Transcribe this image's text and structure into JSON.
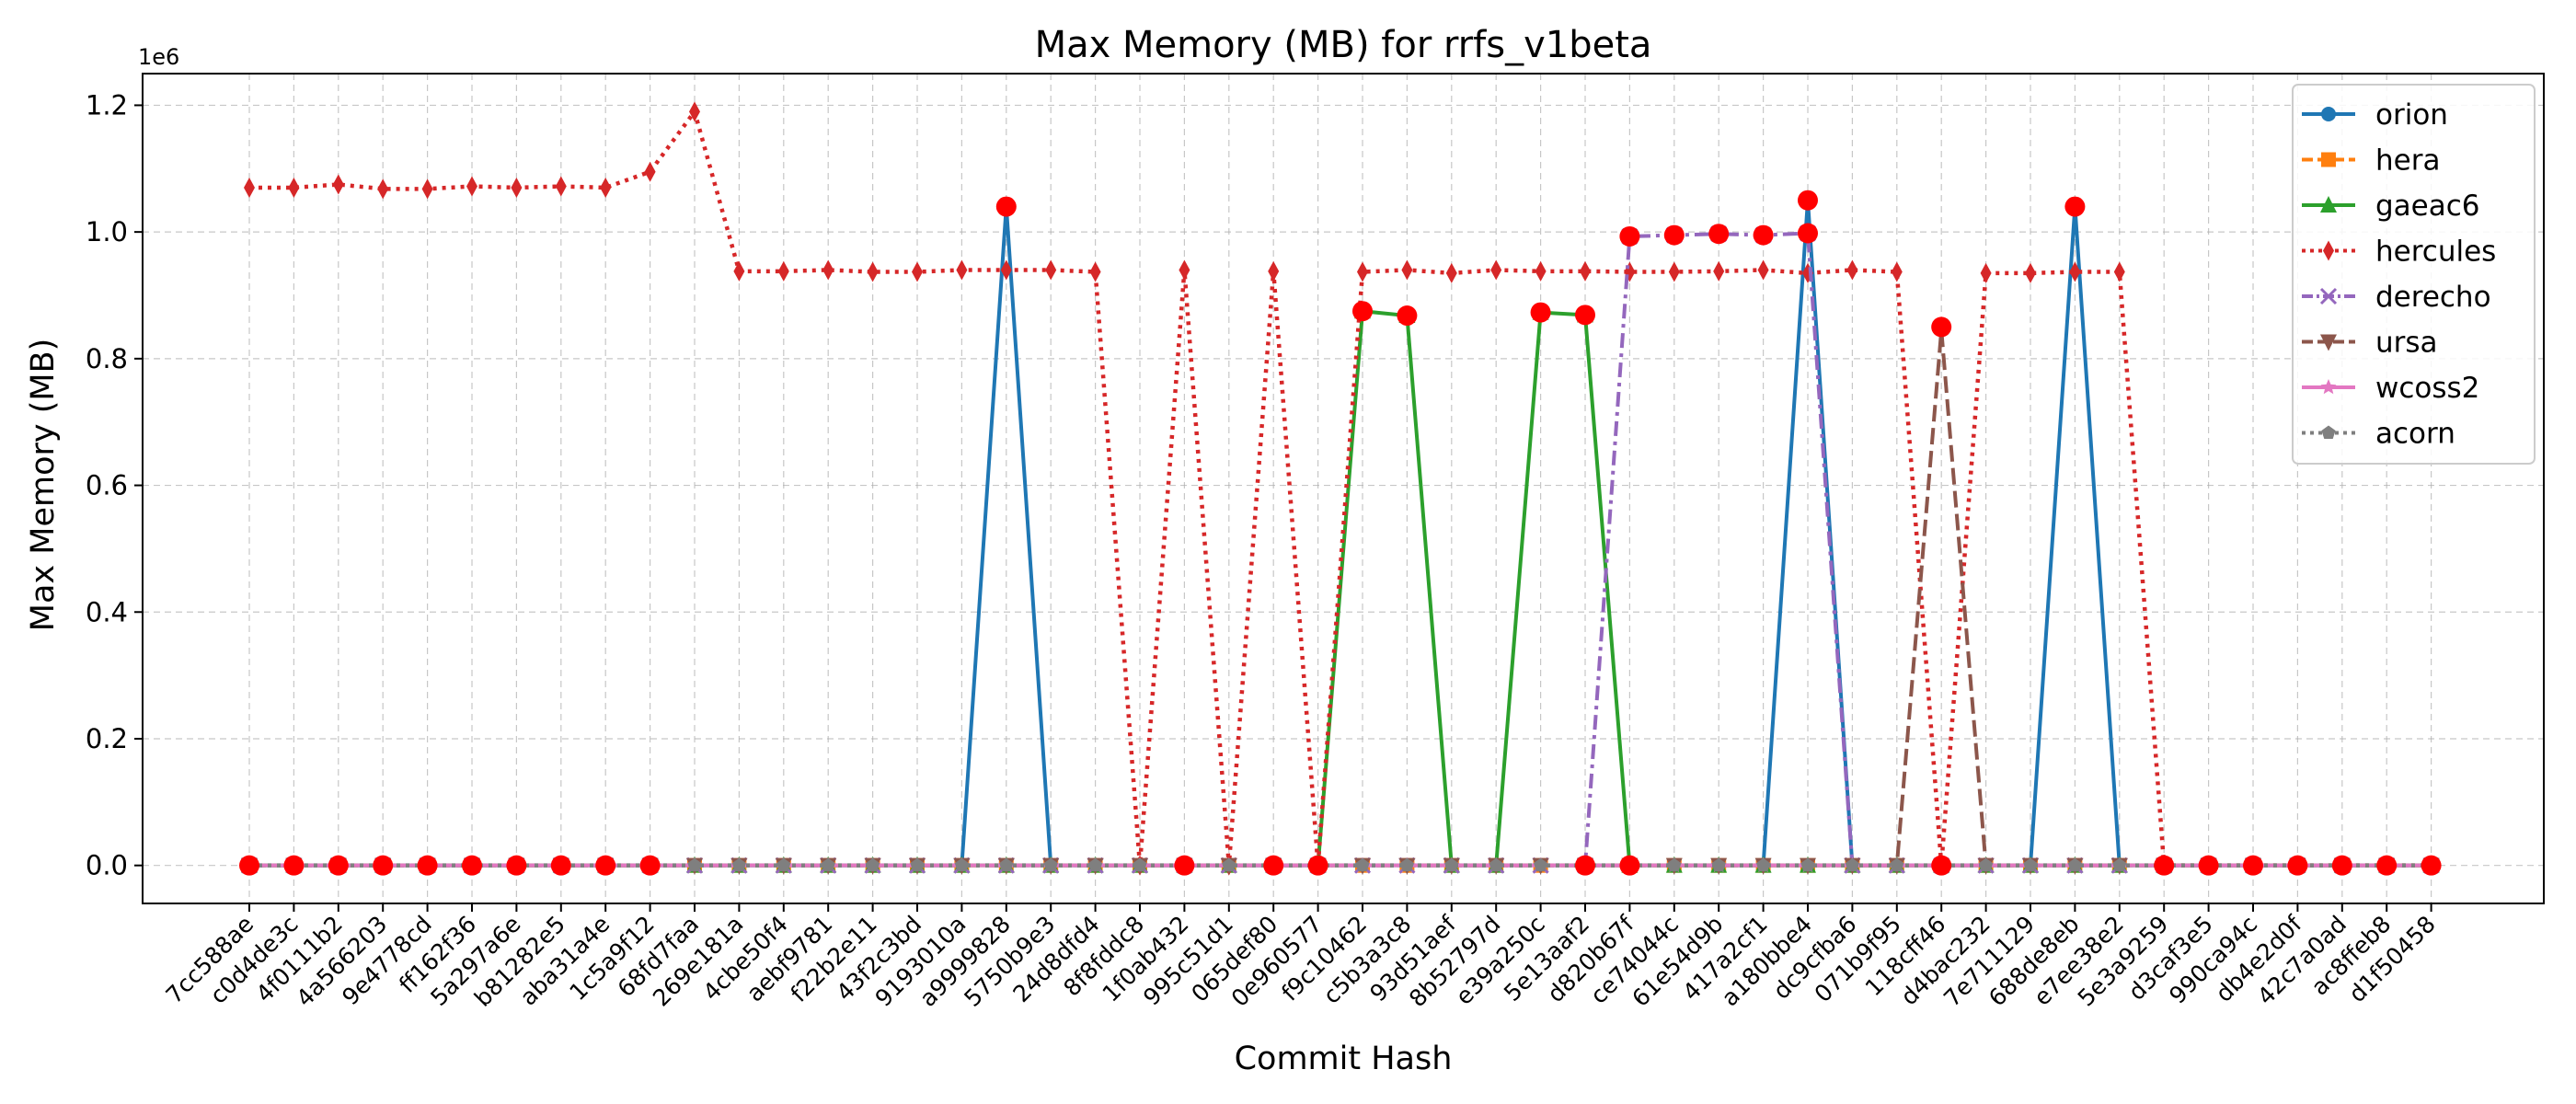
{
  "chart_data": {
    "type": "line",
    "title": "Max Memory (MB) for rrfs_v1beta",
    "xlabel": "Commit Hash",
    "ylabel": "Max Memory (MB)",
    "y_offset_text": "1e6",
    "ylim": [
      -0.06,
      1.25
    ],
    "yticks": [
      0.0,
      0.2,
      0.4,
      0.6,
      0.8,
      1.0,
      1.2
    ],
    "ytick_labels": [
      "0.0",
      "0.2",
      "0.4",
      "0.6",
      "0.8",
      "1.0",
      "1.2"
    ],
    "grid": true,
    "legend_position": "top-right",
    "categories": [
      "7cc588ae",
      "c0d4de3c",
      "4f0111b2",
      "4a566203",
      "9e4778cd",
      "ff162f36",
      "5a297a6e",
      "b81282e5",
      "aba31a4e",
      "1c5a9f12",
      "68fd7faa",
      "269e181a",
      "4cbe50f4",
      "aebf9781",
      "f22b2e11",
      "43f2c3bd",
      "9193010a",
      "a9999828",
      "5750b9e3",
      "24d8dfd4",
      "8f8fddc8",
      "1f0ab432",
      "995c51d1",
      "065def80",
      "0e960577",
      "f9c10462",
      "c5b3a3c8",
      "93d51aef",
      "8b52797d",
      "e39a250c",
      "5e13aaf2",
      "d820b67f",
      "ce74044c",
      "61e54d9b",
      "417a2cf1",
      "a180bbe4",
      "dc9cfba6",
      "071b9f95",
      "118cff46",
      "d4bac232",
      "7e711129",
      "688de8eb",
      "e7ee38e2",
      "5e3a9259",
      "d3caf3e5",
      "990ca94c",
      "db4e2d0f",
      "42c7a0ad",
      "ac8ffeb8",
      "d1f50458"
    ],
    "series": [
      {
        "name": "orion",
        "color": "#1f77b4",
        "line": "solid",
        "marker": "circle",
        "values": [
          0,
          0,
          0,
          0,
          0,
          0,
          0,
          0,
          0,
          0,
          0,
          0,
          0,
          0,
          0,
          0,
          0,
          1.04,
          0,
          0,
          0,
          0,
          0,
          0,
          0,
          0,
          0,
          0,
          0,
          0,
          0,
          0,
          0,
          0,
          0,
          1.05,
          0,
          0,
          0,
          0,
          0,
          1.04,
          0,
          0,
          0,
          0,
          0,
          0,
          0,
          0
        ]
      },
      {
        "name": "hera",
        "color": "#ff7f0e",
        "line": "dashed",
        "marker": "square",
        "values": [
          0,
          0,
          0,
          0,
          0,
          0,
          0,
          0,
          0,
          0,
          0,
          0,
          0,
          0,
          0,
          0,
          0,
          0,
          0,
          0,
          0,
          0,
          0,
          0,
          0,
          0,
          0,
          0,
          0,
          0,
          0,
          0,
          0,
          0,
          0,
          0,
          0,
          0,
          0,
          0,
          0,
          0,
          0,
          0,
          0,
          0,
          0,
          0,
          0,
          0
        ]
      },
      {
        "name": "gaeac6",
        "color": "#2ca02c",
        "line": "solid",
        "marker": "triangle",
        "values": [
          0,
          0,
          0,
          0,
          0,
          0,
          0,
          0,
          0,
          0,
          0,
          0,
          0,
          0,
          0,
          0,
          0,
          0,
          0,
          0,
          0,
          0,
          0,
          0,
          0,
          0.875,
          0.868,
          0,
          0,
          0.873,
          0.869,
          0,
          0,
          0,
          0,
          0,
          0,
          0,
          0,
          0,
          0,
          0,
          0,
          0,
          0,
          0,
          0,
          0,
          0,
          0
        ]
      },
      {
        "name": "hercules",
        "color": "#d62728",
        "line": "dotted",
        "marker": "diamond",
        "values": [
          1.07,
          1.07,
          1.075,
          1.068,
          1.068,
          1.072,
          1.07,
          1.072,
          1.07,
          1.095,
          1.19,
          0.938,
          0.938,
          0.94,
          0.937,
          0.937,
          0.94,
          0.94,
          0.94,
          0.937,
          0,
          0.94,
          0,
          0.938,
          0,
          0.937,
          0.94,
          0.935,
          0.94,
          0.938,
          0.938,
          0.937,
          0.937,
          0.938,
          0.94,
          0.935,
          0.94,
          0.937,
          0,
          0.935,
          0.935,
          0.937,
          0.937,
          0,
          0,
          0,
          0,
          0,
          0,
          0
        ]
      },
      {
        "name": "derecho",
        "color": "#9467bd",
        "line": "dashdot",
        "marker": "x",
        "values": [
          0,
          0,
          0,
          0,
          0,
          0,
          0,
          0,
          0,
          0,
          0,
          0,
          0,
          0,
          0,
          0,
          0,
          0,
          0,
          0,
          0,
          0,
          0,
          0,
          0,
          0,
          0,
          0,
          0,
          0,
          0,
          0.993,
          0.995,
          0.997,
          0.995,
          0.998,
          0,
          0,
          0,
          0,
          0,
          0,
          0,
          0,
          0,
          0,
          0,
          0,
          0,
          0
        ]
      },
      {
        "name": "ursa",
        "color": "#8c564b",
        "line": "dashed",
        "marker": "triangle-down",
        "values": [
          0,
          0,
          0,
          0,
          0,
          0,
          0,
          0,
          0,
          0,
          0,
          0,
          0,
          0,
          0,
          0,
          0,
          0,
          0,
          0,
          0,
          0,
          0,
          0,
          0,
          0,
          0,
          0,
          0,
          0,
          0,
          0,
          0,
          0,
          0,
          0,
          0,
          0,
          0.845,
          0,
          0,
          0,
          0,
          0,
          0,
          0,
          0,
          0,
          0,
          0
        ]
      },
      {
        "name": "wcoss2",
        "color": "#e377c2",
        "line": "solid",
        "marker": "star",
        "values": [
          0,
          0,
          0,
          0,
          0,
          0,
          0,
          0,
          0,
          0,
          0,
          0,
          0,
          0,
          0,
          0,
          0,
          0,
          0,
          0,
          0,
          0,
          0,
          0,
          0,
          0,
          0,
          0,
          0,
          0,
          0,
          0,
          0,
          0,
          0,
          0,
          0,
          0,
          0,
          0,
          0,
          0,
          0,
          0,
          0,
          0,
          0,
          0,
          0,
          0
        ]
      },
      {
        "name": "acorn",
        "color": "#7f7f7f",
        "line": "dotted",
        "marker": "pentagon",
        "values": [
          0,
          0,
          0,
          0,
          0,
          0,
          0,
          0,
          0,
          0,
          0,
          0,
          0,
          0,
          0,
          0,
          0,
          0,
          0,
          0,
          0,
          0,
          0,
          0,
          0,
          0,
          0,
          0,
          0,
          0,
          0,
          0,
          0,
          0,
          0,
          0,
          0,
          0,
          0,
          0,
          0,
          0,
          0,
          0,
          0,
          0,
          0,
          0,
          0,
          0
        ]
      }
    ],
    "highlighted_points": {
      "color": "#ff0000",
      "points": [
        {
          "x": "7cc588ae",
          "y": 0
        },
        {
          "x": "c0d4de3c",
          "y": 0
        },
        {
          "x": "4f0111b2",
          "y": 0
        },
        {
          "x": "4a566203",
          "y": 0
        },
        {
          "x": "9e4778cd",
          "y": 0
        },
        {
          "x": "ff162f36",
          "y": 0
        },
        {
          "x": "5a297a6e",
          "y": 0
        },
        {
          "x": "b81282e5",
          "y": 0
        },
        {
          "x": "aba31a4e",
          "y": 0
        },
        {
          "x": "1c5a9f12",
          "y": 0
        },
        {
          "x": "a9999828",
          "y": 1.04
        },
        {
          "x": "1f0ab432",
          "y": 0
        },
        {
          "x": "065def80",
          "y": 0
        },
        {
          "x": "0e960577",
          "y": 0
        },
        {
          "x": "f9c10462",
          "y": 0.875
        },
        {
          "x": "c5b3a3c8",
          "y": 0.868
        },
        {
          "x": "e39a250c",
          "y": 0.873
        },
        {
          "x": "5e13aaf2",
          "y": 0.869
        },
        {
          "x": "5e13aaf2",
          "y": 0
        },
        {
          "x": "d820b67f",
          "y": 0.993
        },
        {
          "x": "d820b67f",
          "y": 0
        },
        {
          "x": "ce74044c",
          "y": 0.995
        },
        {
          "x": "61e54d9b",
          "y": 0.997
        },
        {
          "x": "417a2cf1",
          "y": 0.995
        },
        {
          "x": "a180bbe4",
          "y": 1.05
        },
        {
          "x": "a180bbe4",
          "y": 0.998
        },
        {
          "x": "118cff46",
          "y": 0.85
        },
        {
          "x": "118cff46",
          "y": 0
        },
        {
          "x": "688de8eb",
          "y": 1.04
        },
        {
          "x": "5e3a9259",
          "y": 0
        },
        {
          "x": "d3caf3e5",
          "y": 0
        },
        {
          "x": "990ca94c",
          "y": 0
        },
        {
          "x": "db4e2d0f",
          "y": 0
        },
        {
          "x": "42c7a0ad",
          "y": 0
        },
        {
          "x": "ac8ffeb8",
          "y": 0
        },
        {
          "x": "d1f50458",
          "y": 0
        }
      ]
    }
  }
}
